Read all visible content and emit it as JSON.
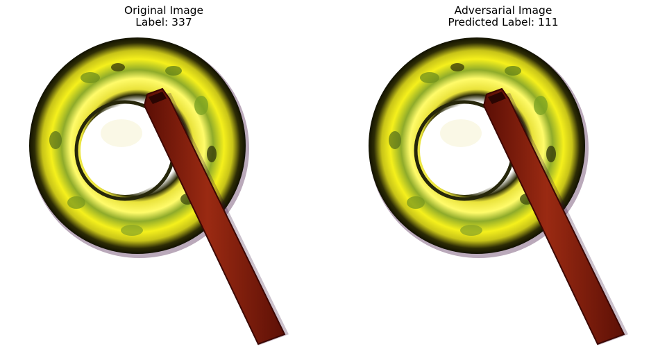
{
  "panels": [
    {
      "title_line1": "Original Image",
      "title_line2": "Label: 337",
      "image_subject": "gong-with-mallet"
    },
    {
      "title_line1": "Adversarial Image",
      "title_line2": "Predicted Label: 111",
      "image_subject": "gong-with-mallet"
    }
  ],
  "colors": {
    "background": "#ffffff",
    "gong_yellow": "#f2ee1a",
    "gong_dark": "#1b1a02",
    "gong_green": "#7c9a22",
    "mallet_red": "#8a1c0a",
    "mallet_dark": "#4a0a04"
  }
}
